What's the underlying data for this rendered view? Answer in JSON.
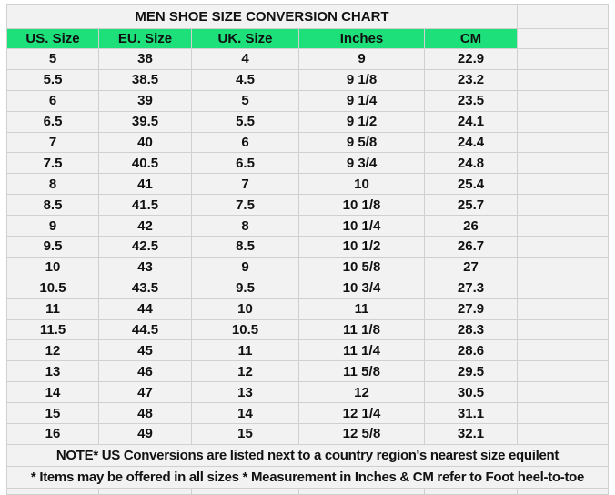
{
  "title": "MEN SHOE SIZE CONVERSION CHART",
  "colors": {
    "accent": "#1de07a",
    "cell_bg": "#f2f2f2",
    "grid": "#d0d0d0"
  },
  "headers": [
    "US. Size",
    "EU. Size",
    "UK. Size",
    "Inches",
    "CM"
  ],
  "rows": [
    [
      "5",
      "38",
      "4",
      "9",
      "22.9"
    ],
    [
      "5.5",
      "38.5",
      "4.5",
      "9 1/8",
      "23.2"
    ],
    [
      "6",
      "39",
      "5",
      "9 1/4",
      "23.5"
    ],
    [
      "6.5",
      "39.5",
      "5.5",
      "9 1/2",
      "24.1"
    ],
    [
      "7",
      "40",
      "6",
      "9 5/8",
      "24.4"
    ],
    [
      "7.5",
      "40.5",
      "6.5",
      "9 3/4",
      "24.8"
    ],
    [
      "8",
      "41",
      "7",
      "10",
      "25.4"
    ],
    [
      "8.5",
      "41.5",
      "7.5",
      "10 1/8",
      "25.7"
    ],
    [
      "9",
      "42",
      "8",
      "10 1/4",
      "26"
    ],
    [
      "9.5",
      "42.5",
      "8.5",
      "10 1/2",
      "26.7"
    ],
    [
      "10",
      "43",
      "9",
      "10 5/8",
      "27"
    ],
    [
      "10.5",
      "43.5",
      "9.5",
      "10 3/4",
      "27.3"
    ],
    [
      "11",
      "44",
      "10",
      "11",
      "27.9"
    ],
    [
      "11.5",
      "44.5",
      "10.5",
      "11 1/8",
      "28.3"
    ],
    [
      "12",
      "45",
      "11",
      "11 1/4",
      "28.6"
    ],
    [
      "13",
      "46",
      "12",
      "11 5/8",
      "29.5"
    ],
    [
      "14",
      "47",
      "13",
      "12",
      "30.5"
    ],
    [
      "15",
      "48",
      "14",
      "12 1/4",
      "31.1"
    ],
    [
      "16",
      "49",
      "15",
      "12 5/8",
      "32.1"
    ]
  ],
  "notes": [
    "NOTE* US Conversions are listed next to a country region's nearest size equilent",
    "* Items may be offered in all sizes * Measurement in Inches & CM refer to Foot heel-to-toe"
  ]
}
